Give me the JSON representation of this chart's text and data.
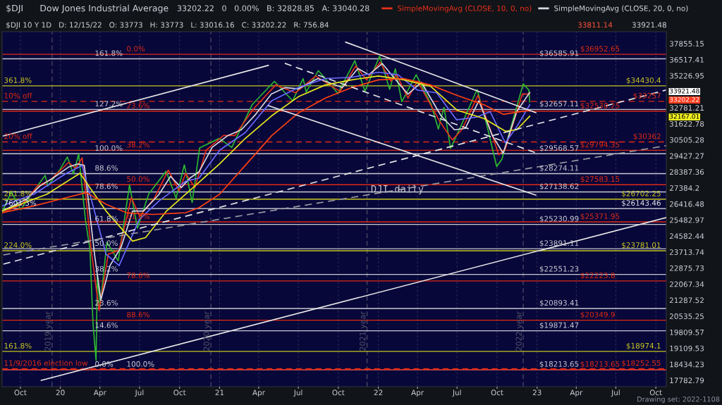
{
  "chart_data": {
    "type": "line",
    "title": "Dow Jones Industrial Average",
    "subtitle": "$DJI 10 Y 1D   D: 12/15/22   O: 33773   H: 33773   L: 33016.16   C: 33202.22   R: 756.84",
    "log": true,
    "grid": "x",
    "legend": "top right",
    "marker": "none",
    "line_style": "solid",
    "xlim": [
      "2019-08-20",
      "2023-10-25"
    ],
    "ylim": [
      17530,
      38880
    ],
    "xticks": [
      {
        "value": "2019-10-01",
        "label": "Oct"
      },
      {
        "value": "2020-01-01",
        "label": "20"
      },
      {
        "value": "2020-04-01",
        "label": "Apr"
      },
      {
        "value": "2020-07-01",
        "label": "Jul"
      },
      {
        "value": "2020-10-01",
        "label": "Oct"
      },
      {
        "value": "2021-01-01",
        "label": "21"
      },
      {
        "value": "2021-04-01",
        "label": "Apr"
      },
      {
        "value": "2021-07-01",
        "label": "Jul"
      },
      {
        "value": "2021-10-01",
        "label": "Oct"
      },
      {
        "value": "2022-01-01",
        "label": "22"
      },
      {
        "value": "2022-04-01",
        "label": "Apr"
      },
      {
        "value": "2022-07-01",
        "label": "Jul"
      },
      {
        "value": "2022-10-01",
        "label": "Oct"
      },
      {
        "value": "2023-01-01",
        "label": "23"
      },
      {
        "value": "2023-04-01",
        "label": "Apr"
      },
      {
        "value": "2023-07-01",
        "label": "Jul"
      },
      {
        "value": "2023-10-01",
        "label": "Oct"
      }
    ],
    "yticks": [
      17782.79,
      18434.23,
      19109.53,
      19809.57,
      20535.25,
      21287.52,
      22067.34,
      22875.73,
      23713.74,
      24582.44,
      25482.97,
      26416.48,
      27384.2,
      28387.36,
      29427.27,
      30505.28,
      31622.78,
      32781.21,
      35226.95,
      36517.41,
      37855.15
    ],
    "series": [
      {
        "color": "#2eb82e",
        "x": [
          "2019-08-20",
          "2019-09-10",
          "2019-10-02",
          "2019-10-25",
          "2019-11-27",
          "2019-12-03",
          "2019-12-31",
          "2020-01-17",
          "2020-01-31",
          "2020-02-12",
          "2020-02-28",
          "2020-03-09",
          "2020-03-16",
          "2020-03-23",
          "2020-03-26",
          "2020-04-01",
          "2020-04-17",
          "2020-05-13",
          "2020-06-08",
          "2020-06-26",
          "2020-07-22",
          "2020-08-31",
          "2020-09-23",
          "2020-10-12",
          "2020-10-30",
          "2020-11-16",
          "2020-12-31",
          "2021-01-29",
          "2021-03-17",
          "2021-05-07",
          "2021-06-18",
          "2021-07-12",
          "2021-07-19",
          "2021-08-16",
          "2021-09-30",
          "2021-11-08",
          "2021-12-01",
          "2022-01-04",
          "2022-01-27",
          "2022-02-09",
          "2022-02-24",
          "2022-03-29",
          "2022-05-02",
          "2022-05-19",
          "2022-06-01",
          "2022-06-16",
          "2022-07-08",
          "2022-08-16",
          "2022-09-07",
          "2022-09-30",
          "2022-10-12",
          "2022-11-30",
          "2022-12-13",
          "2022-12-15"
        ],
        "values": [
          25960,
          27140,
          26080,
          26960,
          28160,
          27500,
          28540,
          29350,
          28256,
          29551,
          25409,
          23851,
          20188,
          18592,
          22552,
          20943,
          24242,
          23247,
          27572,
          25016,
          27005,
          28430,
          26763,
          28837,
          26502,
          29950,
          30606,
          29983,
          33015,
          34778,
          33290,
          34996,
          33962,
          35625,
          33844,
          36432,
          34022,
          36800,
          34160,
          35768,
          33224,
          35295,
          33061,
          31253,
          32813,
          29927,
          31338,
          34152,
          31581,
          28726,
          29211,
          34590,
          34108,
          33202
        ]
      },
      {
        "name": "SimpleMovingAvg (CLOSE, 10, 0, no)",
        "color": "#e8301a",
        "x": [
          "2019-08-20",
          "2019-10-05",
          "2019-11-10",
          "2019-12-10",
          "2020-01-20",
          "2020-02-05",
          "2020-02-20",
          "2020-03-12",
          "2020-03-30",
          "2020-04-20",
          "2020-05-15",
          "2020-06-12",
          "2020-07-01",
          "2020-08-05",
          "2020-09-05",
          "2020-09-30",
          "2020-10-15",
          "2020-11-05",
          "2020-12-01",
          "2021-01-10",
          "2021-02-05",
          "2021-03-20",
          "2021-05-10",
          "2021-06-25",
          "2021-08-10",
          "2021-10-05",
          "2021-11-10",
          "2021-12-05",
          "2022-01-05",
          "2022-01-30",
          "2022-02-12",
          "2022-03-10",
          "2022-04-01",
          "2022-05-22",
          "2022-06-20",
          "2022-07-12",
          "2022-08-18",
          "2022-09-10",
          "2022-10-05",
          "2022-10-20",
          "2022-11-28",
          "2022-12-15"
        ],
        "values": [
          25900,
          26400,
          27500,
          27900,
          29000,
          28600,
          29300,
          23800,
          20800,
          23600,
          23800,
          26800,
          25700,
          26800,
          28500,
          27200,
          28300,
          27400,
          29800,
          30800,
          30800,
          32700,
          34500,
          33900,
          35200,
          34000,
          36000,
          34900,
          36300,
          34800,
          35300,
          33500,
          34800,
          31800,
          30500,
          31200,
          33700,
          31700,
          29500,
          29900,
          33800,
          33811.14
        ]
      },
      {
        "name": "SimpleMovingAvg (CLOSE, 20, 0, no)",
        "color": "#d8d8e0",
        "x": [
          "2019-08-20",
          "2019-10-15",
          "2019-11-15",
          "2019-12-15",
          "2020-01-20",
          "2020-02-10",
          "2020-02-25",
          "2020-03-20",
          "2020-04-03",
          "2020-04-24",
          "2020-05-20",
          "2020-06-15",
          "2020-07-10",
          "2020-08-15",
          "2020-09-10",
          "2020-10-05",
          "2020-10-25",
          "2020-11-15",
          "2020-12-15",
          "2021-01-20",
          "2021-02-20",
          "2021-03-25",
          "2021-04-30",
          "2021-06-01",
          "2021-07-01",
          "2021-08-15",
          "2021-10-10",
          "2021-11-15",
          "2021-12-10",
          "2022-01-10",
          "2022-02-15",
          "2022-03-10",
          "2022-04-10",
          "2022-05-25",
          "2022-06-25",
          "2022-07-20",
          "2022-08-20",
          "2022-09-20",
          "2022-10-15",
          "2022-11-15",
          "2022-12-15"
        ],
        "values": [
          26000,
          26700,
          27500,
          28000,
          28700,
          28900,
          28800,
          23500,
          21300,
          23000,
          24000,
          26000,
          26000,
          27000,
          28100,
          27400,
          28000,
          28400,
          30000,
          30800,
          31200,
          32300,
          33800,
          34300,
          34200,
          35000,
          34300,
          35800,
          35300,
          36200,
          34700,
          33800,
          34700,
          32200,
          31200,
          31300,
          33300,
          30800,
          29600,
          32500,
          33921.48
        ]
      },
      {
        "color": "#6a6aff",
        "x": [
          "2019-08-20",
          "2019-11-01",
          "2020-01-15",
          "2020-02-20",
          "2020-04-15",
          "2020-05-15",
          "2020-06-30",
          "2020-08-15",
          "2020-10-15",
          "2020-11-15",
          "2021-01-01",
          "2021-03-01",
          "2021-05-01",
          "2021-07-01",
          "2021-09-01",
          "2021-11-01",
          "2022-01-01",
          "2022-02-15",
          "2022-04-01",
          "2022-05-15",
          "2022-06-30",
          "2022-08-15",
          "2022-09-15",
          "2022-10-20",
          "2022-11-15",
          "2022-12-15"
        ],
        "values": [
          26300,
          27000,
          28300,
          28800,
          23600,
          23000,
          25500,
          26600,
          27800,
          28000,
          29800,
          31000,
          33300,
          34300,
          35000,
          35100,
          35500,
          35300,
          34100,
          33900,
          31900,
          32100,
          32500,
          30300,
          31400,
          33000
        ]
      },
      {
        "color": "#e8e81e",
        "x": [
          "2019-08-20",
          "2019-12-01",
          "2020-02-15",
          "2020-04-15",
          "2020-06-15",
          "2020-07-15",
          "2020-09-01",
          "2020-11-01",
          "2021-01-01",
          "2021-03-01",
          "2021-05-01",
          "2021-07-01",
          "2021-09-01",
          "2021-11-01",
          "2022-01-01",
          "2022-03-01",
          "2022-05-01",
          "2022-07-01",
          "2022-09-01",
          "2022-10-20",
          "2022-11-15",
          "2022-12-15"
        ],
        "values": [
          26000,
          27000,
          28300,
          26000,
          24300,
          24500,
          26000,
          27400,
          28900,
          30600,
          32200,
          33600,
          34500,
          34900,
          35200,
          34900,
          34400,
          32600,
          32000,
          31100,
          31200,
          32167.01
        ]
      },
      {
        "color": "#ff4010",
        "x": [
          "2019-08-20",
          "2019-11-01",
          "2020-01-01",
          "2020-03-01",
          "2020-04-15",
          "2020-06-01",
          "2020-08-01",
          "2020-10-15",
          "2020-11-15",
          "2021-01-01",
          "2021-03-01",
          "2021-05-01",
          "2021-07-01",
          "2021-09-01",
          "2021-11-01",
          "2022-01-01",
          "2022-03-01",
          "2022-05-01",
          "2022-07-01",
          "2022-09-01",
          "2022-10-15",
          "2022-12-15"
        ],
        "values": [
          25900,
          26300,
          26700,
          27100,
          26400,
          25900,
          25800,
          25900,
          26200,
          27000,
          28800,
          30800,
          32400,
          33500,
          34300,
          34900,
          35000,
          34500,
          33700,
          33000,
          32300,
          32600
        ]
      },
      {
        "color": "#e6e6e6",
        "x": [
          "2019-08-23",
          "2021-04-23"
        ],
        "values": [
          30772,
          36046
        ]
      },
      {
        "color": "#e6e6e6",
        "x": [
          "2019-11-18",
          "2023-10-24"
        ],
        "values": [
          17783,
          25617
        ]
      },
      {
        "color": "#e6e6e6",
        "line_style": "dashed",
        "x": [
          "2019-08-23",
          "2023-10-24"
        ],
        "values": [
          23080,
          34104
        ]
      },
      {
        "color": "#9a9aa0",
        "line_style": "dashed",
        "x": [
          "2019-08-23",
          "2023-10-24"
        ],
        "values": [
          23562,
          30103
        ]
      },
      {
        "color": "#e6e6e6",
        "x": [
          "2021-10-18",
          "2022-12-29"
        ],
        "values": [
          37975,
          32424
        ]
      },
      {
        "color": "#e6e6e6",
        "x": [
          "2021-04-23",
          "2022-12-29"
        ],
        "values": [
          32938,
          26945
        ]
      },
      {
        "color": "#e6e6e6",
        "line_style": "dashed",
        "x": [
          "2021-05-31",
          "2022-12-29"
        ],
        "values": [
          36216,
          29629
        ]
      }
    ],
    "ref_lines": [
      {
        "axis": "y",
        "value": 36952.65,
        "label": "$36952.65",
        "color": "#e02a12"
      },
      {
        "axis": "y",
        "value": 36585.91,
        "label": "$36585.91",
        "color": "#c8c8d2"
      },
      {
        "axis": "y",
        "value": 34430.4,
        "label": "$34430.4",
        "color": "#c8c81e"
      },
      {
        "axis": "y",
        "value": 33257,
        "label": "$33257",
        "color": "#e02a12",
        "line_style": "dashed"
      },
      {
        "axis": "y",
        "value": 32657.11,
        "label": "$32657.11",
        "color": "#c8c8d2"
      },
      {
        "axis": "y",
        "value": 32530.25,
        "label": "$32530.25",
        "color": "#e02a12"
      },
      {
        "axis": "y",
        "value": 30362,
        "label": "$30362",
        "color": "#e02a12",
        "line_style": "dashed"
      },
      {
        "axis": "y",
        "value": 29794.35,
        "label": "$29794.35",
        "color": "#e02a12"
      },
      {
        "axis": "y",
        "value": 29568.57,
        "label": "$29568.57",
        "color": "#c8c8d2"
      },
      {
        "axis": "y",
        "value": 28274.11,
        "label": "$28274.11",
        "color": "#c8c8d2"
      },
      {
        "axis": "y",
        "value": 27583.15,
        "label": "$27583.15",
        "color": "#e02a12"
      },
      {
        "axis": "y",
        "value": 27138.62,
        "label": "$27138.62",
        "color": "#c8c8d2"
      },
      {
        "axis": "y",
        "value": 26702.25,
        "label": "$26702.25",
        "color": "#c8c81e"
      },
      {
        "axis": "y",
        "value": 26143.46,
        "label": "$26143.46",
        "color": "#e6e6ea"
      },
      {
        "axis": "y",
        "value": 25371.95,
        "label": "$25371.95",
        "color": "#e02a12"
      },
      {
        "axis": "y",
        "value": 25230.99,
        "label": "$25230.99",
        "color": "#c8c8d2"
      },
      {
        "axis": "y",
        "value": 23891.11,
        "label": "$23891.11",
        "color": "#c8c8d2"
      },
      {
        "axis": "y",
        "value": 23781.01,
        "label": "$23781.01",
        "color": "#c8c81e"
      },
      {
        "axis": "y",
        "value": 22551.23,
        "label": "$22551.23",
        "color": "#c8c8d2"
      },
      {
        "axis": "y",
        "value": 22223.8,
        "label": "$22223.8",
        "color": "#e02a12"
      },
      {
        "axis": "y",
        "value": 20893.41,
        "label": "$20893.41",
        "color": "#c8c8d2"
      },
      {
        "axis": "y",
        "value": 20349.9,
        "label": "$20349.9",
        "color": "#e02a12"
      },
      {
        "axis": "y",
        "value": 19871.47,
        "label": "$19871.47",
        "color": "#c8c8d2"
      },
      {
        "axis": "y",
        "value": 18974.1,
        "label": "$18974.1",
        "color": "#c8c81e"
      },
      {
        "axis": "y",
        "value": 18252.55,
        "label": "$18252.55",
        "color": "#e02a12",
        "line_style": "dashed"
      },
      {
        "axis": "y",
        "value": 18213.65,
        "label": "$18213.65",
        "color": "#c8c8d2"
      },
      {
        "axis": "y",
        "value": 18213.65,
        "label": "$18213.65",
        "color": "#e02a12"
      },
      {
        "axis": "x",
        "value": "2019-12-13",
        "label": "2019 year",
        "color": "#55556a",
        "line_style": "dashed"
      },
      {
        "axis": "x",
        "value": "2020-12-12",
        "label": "2020 year",
        "color": "#55556a",
        "line_style": "dashed"
      },
      {
        "axis": "x",
        "value": "2021-12-06",
        "label": "2021 year",
        "color": "#55556a",
        "line_style": "dashed"
      },
      {
        "axis": "x",
        "value": "2022-11-30",
        "label": "2022 year",
        "color": "#55556a",
        "line_style": "dashed"
      }
    ],
    "annotations": [
      "$DJI",
      "33202.22   0   0.00%   B: 32828.85   A: 33040.28",
      "33811.14",
      "33921.48",
      "DJI daily",
      "Drawing set: 2022-1108",
      "33921.48",
      "33202.22",
      "32167.01",
      {
        "text": "161.8%",
        "x": "2020-03-20",
        "y": 36585.91
      },
      {
        "text": "127.2%",
        "x": "2020-03-20",
        "y": 32657.11
      },
      {
        "text": "100.0%",
        "x": "2020-03-20",
        "y": 29568.57
      },
      {
        "text": "88.6%",
        "x": "2020-03-20",
        "y": 28274.11
      },
      {
        "text": "78.6%",
        "x": "2020-03-20",
        "y": 27138.62
      },
      {
        "text": "61.8%",
        "x": "2020-03-20",
        "y": 25230.99
      },
      {
        "text": "50.0%",
        "x": "2020-03-20",
        "y": 23891.11
      },
      {
        "text": "38.2%",
        "x": "2020-03-20",
        "y": 22551.23
      },
      {
        "text": "23.6%",
        "x": "2020-03-20",
        "y": 20893.41
      },
      {
        "text": "14.6%",
        "x": "2020-03-20",
        "y": 19871.47
      },
      {
        "text": "0.0%",
        "x": "2020-03-20",
        "y": 18213.65
      },
      {
        "text": "0.0%",
        "x": "2020-06-01",
        "y": 36952.65
      },
      {
        "text": "23.6%",
        "x": "2020-06-01",
        "y": 32530.25
      },
      {
        "text": "38.2%",
        "x": "2020-06-01",
        "y": 29794.35
      },
      {
        "text": "50.0%",
        "x": "2020-06-01",
        "y": 27583.15
      },
      {
        "text": "61.8%",
        "x": "2020-06-01",
        "y": 25371.95
      },
      {
        "text": "78.6%",
        "x": "2020-06-01",
        "y": 22223.8
      },
      {
        "text": "88.6%",
        "x": "2020-06-01",
        "y": 20349.9
      },
      {
        "text": "100.0%",
        "x": "2020-06-01",
        "y": 18213.65
      },
      {
        "text": "361.8%",
        "x": "2019-08-24",
        "y": 34430.4
      },
      {
        "text": "10% off",
        "x": "2019-08-24",
        "y": 33257
      },
      {
        "text": "20% off",
        "x": "2019-08-24",
        "y": 30362
      },
      {
        "text": "261.8%",
        "x": "2019-08-24",
        "y": 26702.25
      },
      {
        "text": "7601.3%",
        "x": "2019-08-24",
        "y": 26143.46
      },
      {
        "text": "224.0%",
        "x": "2019-08-24",
        "y": 23781.01
      },
      {
        "text": "161.8%",
        "x": "2019-08-24",
        "y": 18974.1
      },
      {
        "text": "11/9/2016 election low",
        "x": "2019-08-24",
        "y": 18252.55
      }
    ]
  }
}
